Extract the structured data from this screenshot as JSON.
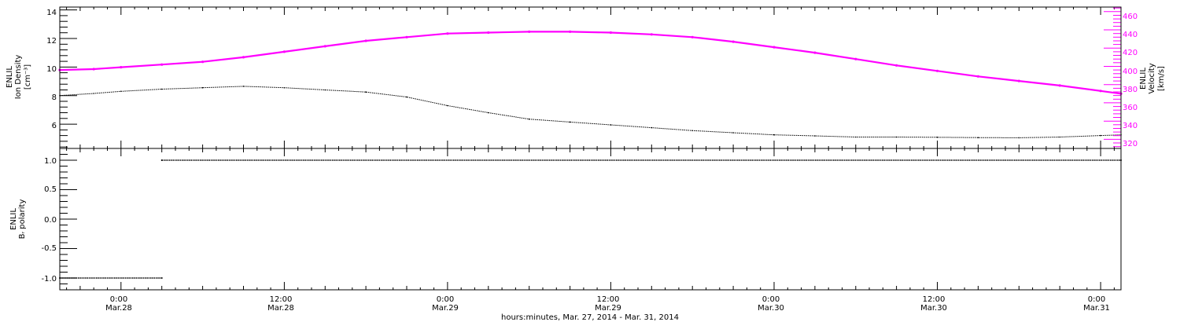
{
  "x_axis": {
    "title": "hours:minutes, Mar. 27, 2014 - Mar. 31, 2014",
    "start_hour": -4.5,
    "end_hour": 73.5,
    "ticks": [
      {
        "hour": 0,
        "time": "0:00",
        "date": "Mar.28"
      },
      {
        "hour": 12,
        "time": "12:00",
        "date": "Mar.28"
      },
      {
        "hour": 24,
        "time": "0:00",
        "date": "Mar.29"
      },
      {
        "hour": 36,
        "time": "12:00",
        "date": "Mar.29"
      },
      {
        "hour": 48,
        "time": "0:00",
        "date": "Mar.30"
      },
      {
        "hour": 60,
        "time": "12:00",
        "date": "Mar.30"
      },
      {
        "hour": 72,
        "time": "0:00",
        "date": "Mar.31"
      }
    ]
  },
  "top_panel": {
    "left_label": [
      "ENLIL",
      "Ion Density",
      "[cm⁻³]"
    ],
    "right_label": [
      "ENLIL",
      "Velocity",
      "[km/s]"
    ],
    "left_ticks": [
      "6",
      "8",
      "10",
      "12",
      "14"
    ],
    "right_ticks": [
      "320",
      "340",
      "360",
      "380",
      "400",
      "420",
      "440",
      "460"
    ]
  },
  "bottom_panel": {
    "label": [
      "ENLIL",
      "Bᵣ polarity"
    ],
    "ticks": [
      "-1.0",
      "-0.5",
      "0.0",
      "0.5",
      "1.0"
    ]
  },
  "colors": {
    "density": "#000000",
    "velocity": "#ff00ff",
    "polarity": "#000000",
    "axis": "#000000"
  },
  "chart_data": [
    {
      "type": "line",
      "panel": "top",
      "xlabel": "hours:minutes, Mar. 27, 2014 - Mar. 31, 2014",
      "ylabel": "ENLIL Ion Density [cm⁻³]",
      "ylim": [
        4.3,
        14.2
      ],
      "series": [
        {
          "name": "ENLIL Ion Density",
          "axis": "left",
          "color": "#000000",
          "x": [
            "2014-03-27 19:30",
            "2014-03-27 22:00",
            "2014-03-28 00:00",
            "2014-03-28 03:00",
            "2014-03-28 06:00",
            "2014-03-28 09:00",
            "2014-03-28 12:00",
            "2014-03-28 15:00",
            "2014-03-28 18:00",
            "2014-03-28 21:00",
            "2014-03-29 00:00",
            "2014-03-29 03:00",
            "2014-03-29 06:00",
            "2014-03-29 09:00",
            "2014-03-29 12:00",
            "2014-03-29 15:00",
            "2014-03-29 18:00",
            "2014-03-29 21:00",
            "2014-03-30 00:00",
            "2014-03-30 03:00",
            "2014-03-30 06:00",
            "2014-03-30 09:00",
            "2014-03-30 12:00",
            "2014-03-30 15:00",
            "2014-03-30 18:00",
            "2014-03-30 21:00",
            "2014-03-31 00:00",
            "2014-03-31 01:30"
          ],
          "values": [
            8.0,
            8.15,
            8.3,
            8.45,
            8.55,
            8.65,
            8.55,
            8.4,
            8.25,
            7.9,
            7.3,
            6.8,
            6.35,
            6.15,
            5.95,
            5.75,
            5.55,
            5.4,
            5.25,
            5.18,
            5.1,
            5.1,
            5.08,
            5.06,
            5.05,
            5.1,
            5.2,
            5.25
          ]
        },
        {
          "name": "ENLIL Velocity",
          "axis": "right",
          "color": "#ff00ff",
          "ylim": [
            310,
            465
          ],
          "x": [
            "2014-03-27 19:30",
            "2014-03-27 22:00",
            "2014-03-28 00:00",
            "2014-03-28 03:00",
            "2014-03-28 06:00",
            "2014-03-28 09:00",
            "2014-03-28 12:00",
            "2014-03-28 15:00",
            "2014-03-28 18:00",
            "2014-03-28 21:00",
            "2014-03-29 00:00",
            "2014-03-29 03:00",
            "2014-03-29 06:00",
            "2014-03-29 09:00",
            "2014-03-29 12:00",
            "2014-03-29 15:00",
            "2014-03-29 18:00",
            "2014-03-29 21:00",
            "2014-03-30 00:00",
            "2014-03-30 03:00",
            "2014-03-30 06:00",
            "2014-03-30 09:00",
            "2014-03-30 12:00",
            "2014-03-30 15:00",
            "2014-03-30 18:00",
            "2014-03-30 21:00",
            "2014-03-31 00:00",
            "2014-03-31 01:30"
          ],
          "values": [
            396,
            397,
            399,
            402,
            405,
            410,
            416,
            422,
            428,
            432,
            436,
            437,
            438,
            438,
            437,
            435,
            432,
            427,
            421,
            415,
            408,
            401,
            395,
            389,
            384,
            379,
            373,
            370
          ]
        }
      ]
    },
    {
      "type": "scatter",
      "panel": "bottom",
      "xlabel": "hours:minutes, Mar. 27, 2014 - Mar. 31, 2014",
      "ylabel": "ENLIL Bᵣ polarity",
      "ylim": [
        -1.2,
        1.2
      ],
      "series": [
        {
          "name": "ENLIL Br polarity",
          "color": "#000000",
          "x": [
            "2014-03-27 19:30",
            "2014-03-28 03:00",
            "2014-03-28 03:00",
            "2014-03-31 01:30"
          ],
          "values": [
            -1.0,
            -1.0,
            1.0,
            1.0
          ]
        }
      ]
    }
  ]
}
